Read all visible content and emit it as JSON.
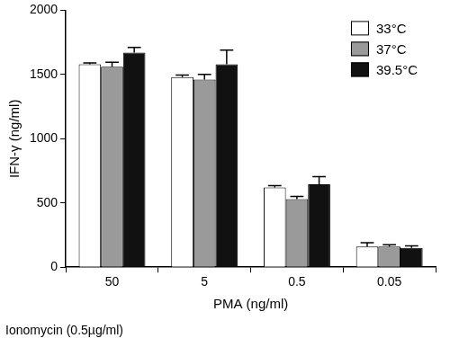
{
  "chart_data": {
    "type": "bar",
    "x_label": "PMA (ng/ml)",
    "y_label": "IFN-γ (ng/ml)",
    "annotations": [
      "Ionomycin (0.5µg/ml)"
    ],
    "categories": [
      "50",
      "5",
      "0.5",
      "0.05"
    ],
    "series": [
      {
        "name": "33°C",
        "color": "#ffffff",
        "values": [
          1580,
          1480,
          620,
          160
        ],
        "errors": [
          10,
          15,
          15,
          30
        ]
      },
      {
        "name": "37°C",
        "color": "#9a9a9a",
        "values": [
          1560,
          1460,
          530,
          160
        ],
        "errors": [
          35,
          40,
          20,
          15
        ]
      },
      {
        "name": "39.5°C",
        "color": "#111111",
        "values": [
          1670,
          1580,
          645,
          150
        ],
        "errors": [
          40,
          110,
          60,
          15
        ]
      }
    ],
    "ylim": [
      0,
      2000
    ],
    "yticks": [
      0,
      500,
      1000,
      1500,
      2000
    ],
    "grid": false,
    "legend": "upper right"
  }
}
